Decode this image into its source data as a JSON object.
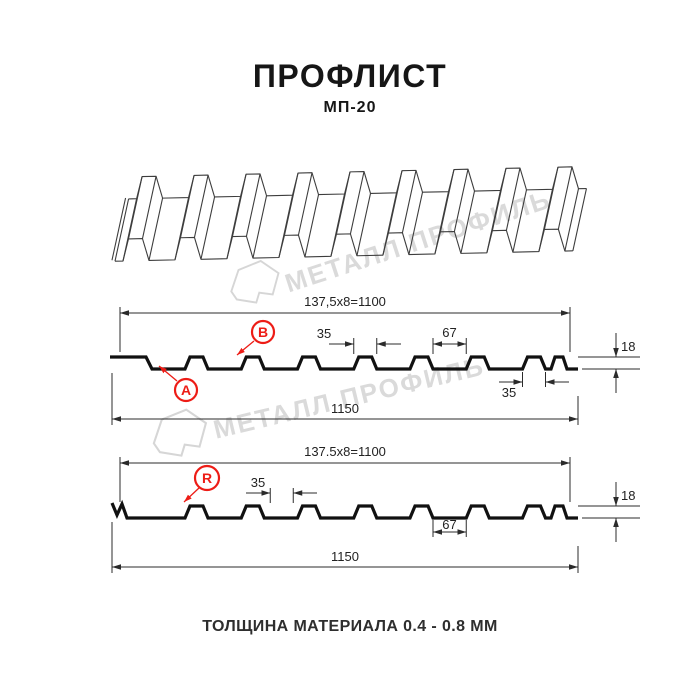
{
  "header": {
    "title": "ПРОФЛИСТ",
    "subtitle": "МП-20"
  },
  "watermark": {
    "text1": "МЕТАЛЛ ПРОФИЛЬ",
    "text2": "МЕТАЛЛ ПРОФИЛЬ"
  },
  "profile_top": {
    "callout_a": "A",
    "callout_b": "B",
    "dim_span": "137,5x8=1100",
    "dim_rib": "35",
    "dim_valley": "67",
    "dim_height": "18",
    "dim_total": "1150",
    "dim_overlap_rib": "35"
  },
  "profile_bottom": {
    "callout_r": "R",
    "dim_span": "137.5x8=1100",
    "dim_rib": "35",
    "dim_valley": "67",
    "dim_height": "18",
    "dim_total": "1150"
  },
  "footer": {
    "caption": "ТОЛЩИНА МАТЕРИАЛА 0.4 - 0.8 ММ"
  },
  "colors": {
    "accent_red": "#ed1c16",
    "line": "#111111",
    "dim_line": "#2b2b2b",
    "watermark": "#dadada"
  }
}
